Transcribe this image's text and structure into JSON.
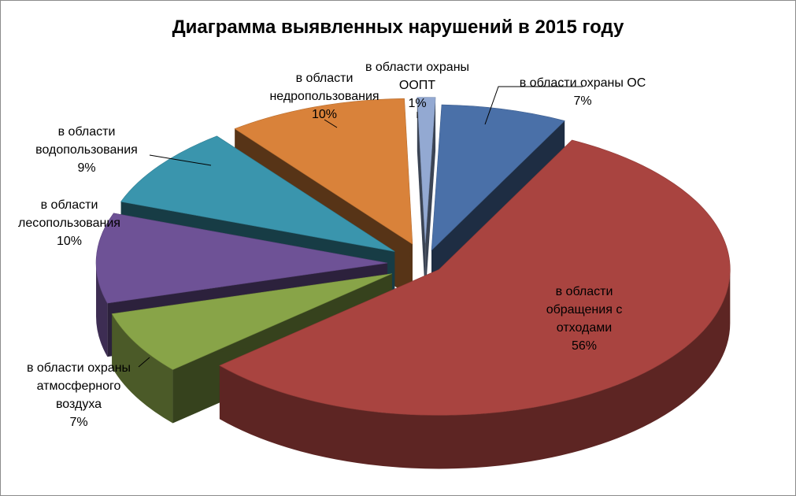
{
  "chart_data": {
    "type": "pie",
    "title": "Диаграмма выявленных нарушений в 2015 году",
    "slices": [
      {
        "label_lines": [
          "в области охраны ОС"
        ],
        "value": 7,
        "value_label": "7%",
        "color": "#4a70a8"
      },
      {
        "label_lines": [
          "в области",
          "обращения с",
          "отходами"
        ],
        "value": 56,
        "value_label": "56%",
        "color": "#a94440"
      },
      {
        "label_lines": [
          "в области охраны",
          "атмосферного",
          "воздуха"
        ],
        "value": 7,
        "value_label": "7%",
        "color": "#88a448"
      },
      {
        "label_lines": [
          "в области",
          "лесопользования"
        ],
        "value": 10,
        "value_label": "10%",
        "color": "#6e5296"
      },
      {
        "label_lines": [
          "в области",
          "водопользования"
        ],
        "value": 9,
        "value_label": "9%",
        "color": "#3a95ad"
      },
      {
        "label_lines": [
          "в области",
          "недропользования"
        ],
        "value": 10,
        "value_label": "10%",
        "color": "#d9823a"
      },
      {
        "label_lines": [
          "в области охраны",
          "ООПТ"
        ],
        "value": 1,
        "value_label": "1%",
        "color": "#93a9d2"
      }
    ],
    "legend": "none",
    "style": "3d-exploded"
  }
}
